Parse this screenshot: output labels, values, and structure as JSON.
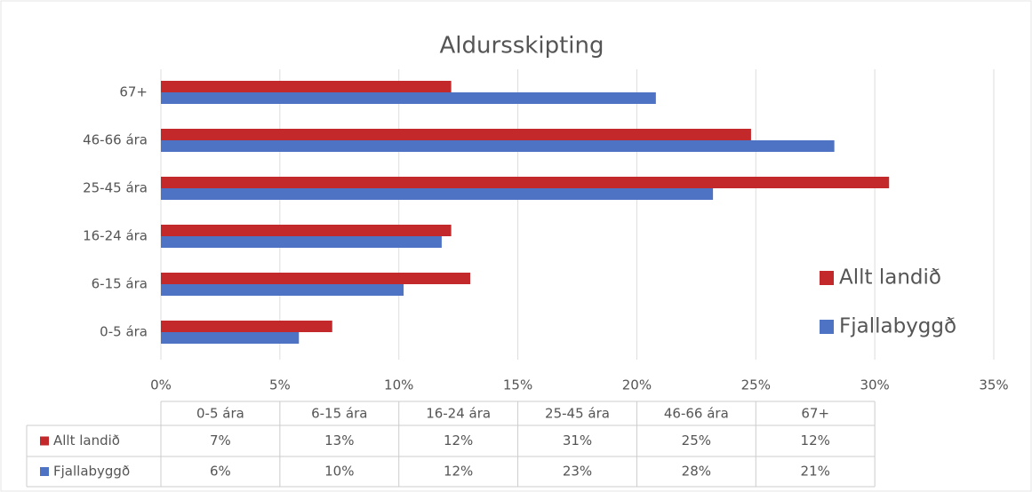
{
  "chart_data": {
    "type": "bar",
    "orientation": "horizontal",
    "title": "Aldursskipting",
    "categories": [
      "0-5 ára",
      "6-15 ára",
      "16-24 ára",
      "25-45 ára",
      "46-66 ára",
      "67+"
    ],
    "series": [
      {
        "name": "Allt landið",
        "color": "#c3282b",
        "values": [
          7.2,
          13.0,
          12.2,
          30.6,
          24.8,
          12.2
        ],
        "value_labels": [
          "7%",
          "13%",
          "12%",
          "31%",
          "25%",
          "12%"
        ]
      },
      {
        "name": "Fjallabyggð",
        "color": "#4f73c4",
        "values": [
          5.8,
          10.2,
          11.8,
          23.2,
          28.3,
          20.8
        ],
        "value_labels": [
          "6%",
          "10%",
          "12%",
          "23%",
          "28%",
          "21%"
        ]
      }
    ],
    "xlim": [
      0,
      35
    ],
    "xticks": [
      {
        "value": 0,
        "label": "0%"
      },
      {
        "value": 5,
        "label": "5%"
      },
      {
        "value": 10,
        "label": "10%"
      },
      {
        "value": 15,
        "label": "15%"
      },
      {
        "value": 20,
        "label": "20%"
      },
      {
        "value": 25,
        "label": "25%"
      },
      {
        "value": 30,
        "label": "30%"
      },
      {
        "value": 35,
        "label": "35%"
      }
    ],
    "grid": true,
    "legend": "right",
    "data_table": true
  }
}
